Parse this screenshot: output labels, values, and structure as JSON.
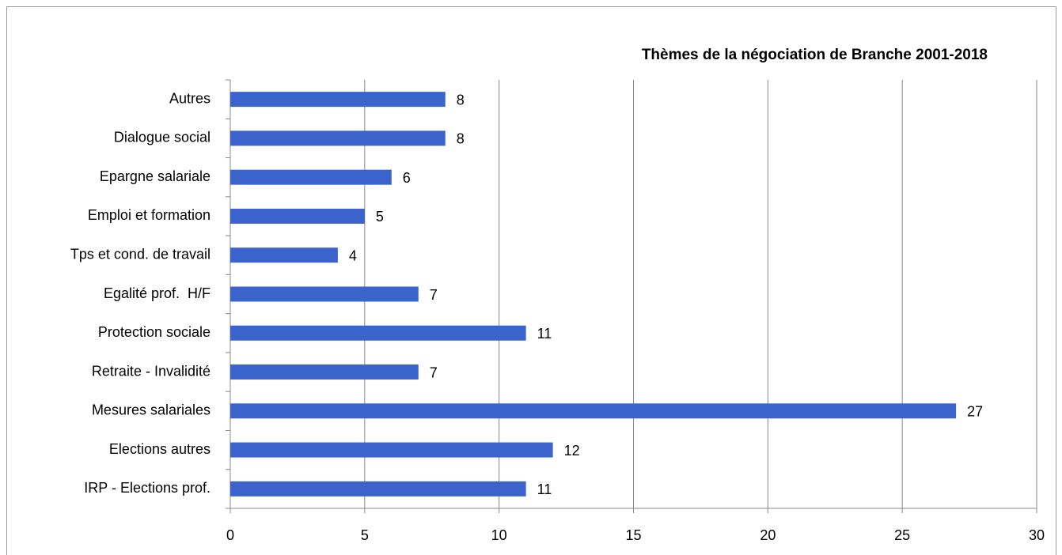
{
  "chart_data": {
    "type": "hbar",
    "title": "Thèmes de la négociation de Branche 2001-2018",
    "categories": [
      "Autres",
      "Dialogue social",
      "Epargne salariale",
      "Emploi et formation",
      "Tps et cond. de travail",
      "Egalité prof.  H/F",
      "Protection sociale",
      "Retraite - Invalidité",
      "Mesures salariales",
      "Elections autres",
      "IRP - Elections prof."
    ],
    "values": [
      8,
      8,
      6,
      5,
      4,
      7,
      11,
      7,
      27,
      12,
      11
    ],
    "color": "#3a64cc",
    "xlim": [
      0,
      30
    ],
    "xticks": [
      0,
      5,
      10,
      15,
      20,
      25,
      30
    ],
    "grid": true
  }
}
